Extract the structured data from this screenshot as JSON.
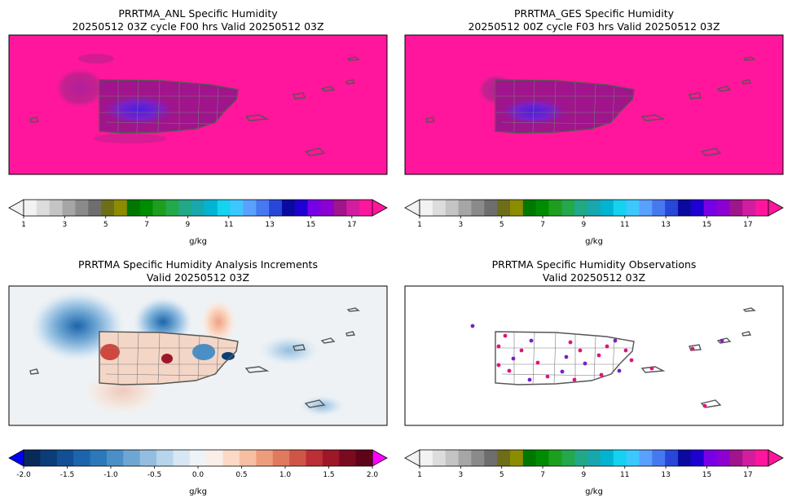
{
  "colors": {
    "humidity_fill": "#ff169c",
    "coast_outline": "#555555",
    "increment_background": "#eef2f4",
    "obs_marker": "#e0147a"
  },
  "panels": [
    {
      "id": "anl",
      "title_line1": "PRRTMA_ANL Specific Humidity",
      "title_line2": "20250512 03Z cycle F00 hrs Valid 20250512 03Z"
    },
    {
      "id": "ges",
      "title_line1": "PRRTMA_GES Specific Humidity",
      "title_line2": "20250512 00Z cycle F03 hrs Valid 20250512 03Z"
    },
    {
      "id": "inc",
      "title_line1": "PRRTMA Specific Humidity Analysis Increments",
      "title_line2": "Valid 20250512 03Z"
    },
    {
      "id": "obs",
      "title_line1": "PRRTMA Specific Humidity Observations",
      "title_line2": "Valid 20250512 03Z"
    }
  ],
  "colorbars": {
    "humidity": {
      "label": "g/kg",
      "ticks": [
        "1",
        "3",
        "5",
        "7",
        "9",
        "11",
        "13",
        "15",
        "17"
      ],
      "colors": [
        "#f2f2f2",
        "#dcdcdc",
        "#c4c4c4",
        "#a6a6a6",
        "#8a8a8a",
        "#6e6e6e",
        "#6e6e19",
        "#8c8c00",
        "#007800",
        "#008c00",
        "#1e9e1e",
        "#23a84b",
        "#21a887",
        "#19a7ae",
        "#00b4d2",
        "#14d2f0",
        "#3cc8ff",
        "#5aa0ff",
        "#4678f0",
        "#2846d7",
        "#0a0aa0",
        "#1e00d2",
        "#7800e6",
        "#8c00d2",
        "#a0148c",
        "#d21e9e",
        "#ff169c"
      ]
    },
    "increments": {
      "label": "g/kg",
      "ticks": [
        "-2.0",
        "-1.5",
        "-1.0",
        "-0.5",
        "0.0",
        "0.5",
        "1.0",
        "1.5",
        "2.0"
      ],
      "colors": [
        "#082a5a",
        "#0b3d78",
        "#124f94",
        "#1c64ab",
        "#2b78bb",
        "#4a8fc7",
        "#6ea6d3",
        "#93bedf",
        "#b7d4ea",
        "#d6e6f2",
        "#eef3f7",
        "#f9eee8",
        "#fbd9c6",
        "#f6bfa2",
        "#ee9d7c",
        "#e07a5e",
        "#cf5547",
        "#bb2f35",
        "#9e1729",
        "#7a0a1f",
        "#5e0319"
      ],
      "under_color": "#0000ff",
      "over_color": "#ff00ff"
    }
  },
  "chart_data": [
    {
      "type": "heatmap",
      "title": "PRRTMA_ANL Specific Humidity",
      "subtitle": "20250512 03Z cycle F00 hrs Valid 20250512 03Z",
      "units": "g/kg",
      "colorbar_range": [
        1,
        18
      ],
      "colorbar_ticks": [
        1,
        3,
        5,
        7,
        9,
        11,
        13,
        15,
        17
      ],
      "extend": "both"
    },
    {
      "type": "heatmap",
      "title": "PRRTMA_GES Specific Humidity",
      "subtitle": "20250512 00Z cycle F03 hrs Valid 20250512 03Z",
      "units": "g/kg",
      "colorbar_range": [
        1,
        18
      ],
      "colorbar_ticks": [
        1,
        3,
        5,
        7,
        9,
        11,
        13,
        15,
        17
      ],
      "extend": "both"
    },
    {
      "type": "heatmap",
      "title": "PRRTMA Specific Humidity Analysis Increments",
      "subtitle": "Valid 20250512 03Z",
      "units": "g/kg",
      "colorbar_range": [
        -2.0,
        2.0
      ],
      "colorbar_ticks": [
        -2.0,
        -1.5,
        -1.0,
        -0.5,
        0.0,
        0.5,
        1.0,
        1.5,
        2.0
      ],
      "extend": "both"
    },
    {
      "type": "scatter",
      "title": "PRRTMA Specific Humidity Observations",
      "subtitle": "Valid 20250512 03Z",
      "units": "g/kg",
      "colorbar_range": [
        1,
        18
      ],
      "colorbar_ticks": [
        1,
        3,
        5,
        7,
        9,
        11,
        13,
        15,
        17
      ],
      "extend": "both"
    }
  ]
}
